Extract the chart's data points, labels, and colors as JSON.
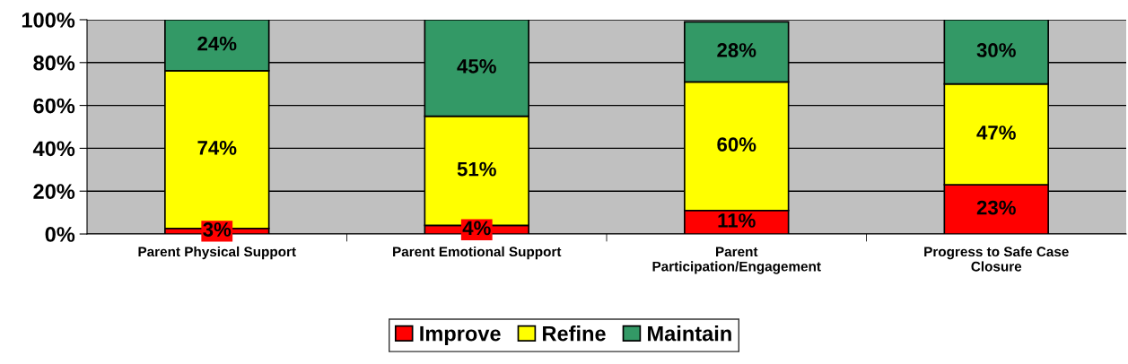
{
  "chart_data": {
    "type": "bar",
    "stacked": true,
    "categories": [
      "Parent Physical Support",
      "Parent Emotional Support",
      "Parent\nParticipation/Engagement",
      "Progress to Safe Case\nClosure"
    ],
    "series": [
      {
        "name": "Improve",
        "color": "#ff0000",
        "values": [
          2.6,
          4,
          11,
          23
        ],
        "value_labels": [
          "3%",
          "4%",
          "11%",
          "23%"
        ]
      },
      {
        "name": "Refine",
        "color": "#ffff00",
        "values": [
          73.6,
          51,
          60,
          47
        ],
        "value_labels": [
          "74%",
          "51%",
          "60%",
          "47%"
        ]
      },
      {
        "name": "Maintain",
        "color": "#339966",
        "values": [
          23.8,
          45,
          28,
          30
        ],
        "value_labels": [
          "24%",
          "45%",
          "28%",
          "30%"
        ]
      }
    ],
    "ylim": [
      0,
      100
    ],
    "yticks": [
      {
        "value": 0,
        "label": "0%"
      },
      {
        "value": 20,
        "label": "20%"
      },
      {
        "value": 40,
        "label": "40%"
      },
      {
        "value": 60,
        "label": "60%"
      },
      {
        "value": 80,
        "label": "80%"
      },
      {
        "value": 100,
        "label": "100%"
      }
    ],
    "grid": "y",
    "legend": "bottom"
  }
}
